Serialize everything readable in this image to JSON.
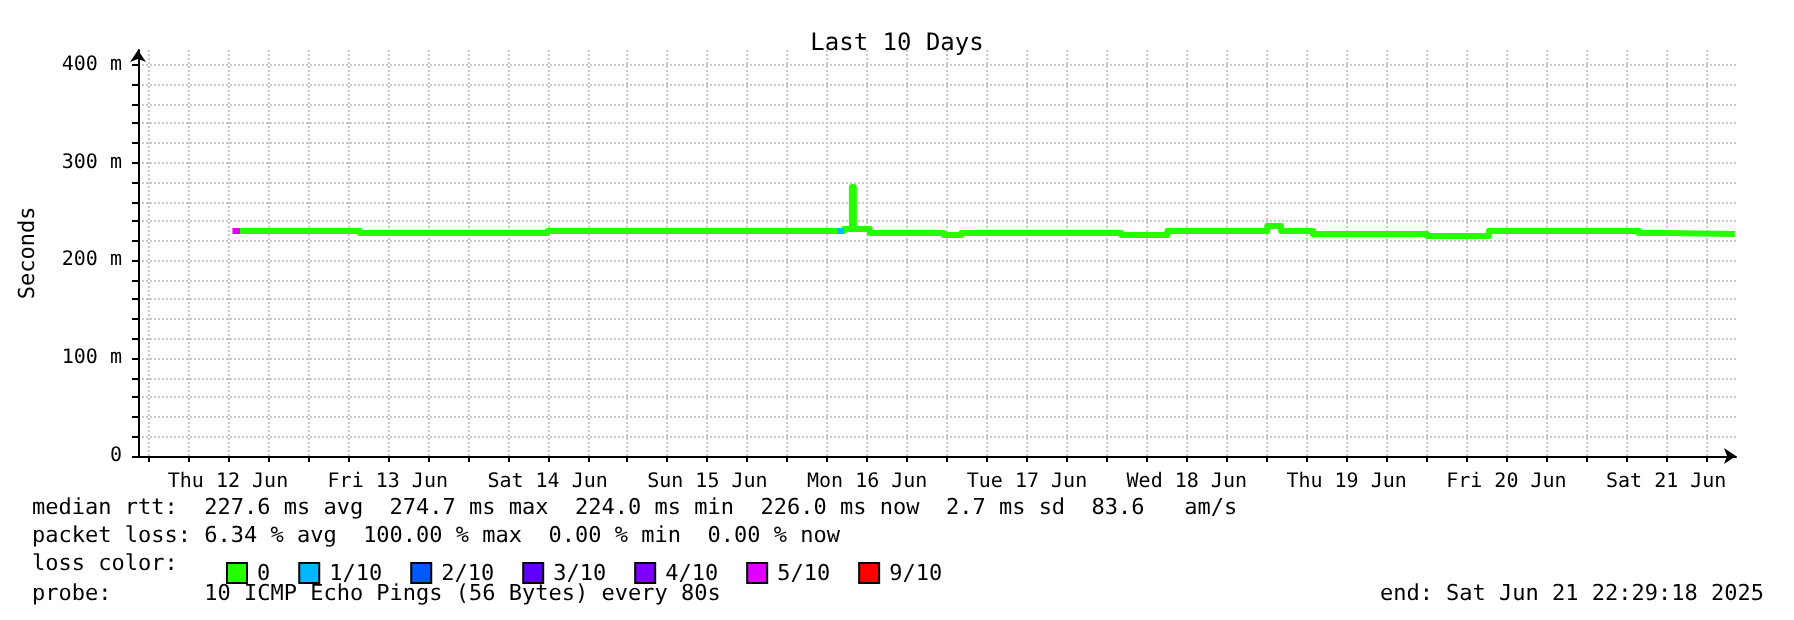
{
  "chart_data": {
    "type": "step",
    "title": "Last 10 Days",
    "ylabel": "Seconds",
    "xlim": [
      "2025-06-11T22:29",
      "2025-06-21T22:29"
    ],
    "xticks": [
      {
        "value": "2025-06-12T00:00",
        "label": null
      },
      {
        "value": "2025-06-12T06:00",
        "label": null
      },
      {
        "value": "2025-06-12T12:00",
        "label": "Thu 12 Jun"
      },
      {
        "value": "2025-06-12T18:00",
        "label": null
      },
      {
        "value": "2025-06-13T00:00",
        "label": null
      },
      {
        "value": "2025-06-13T06:00",
        "label": null
      },
      {
        "value": "2025-06-13T12:00",
        "label": "Fri 13 Jun"
      },
      {
        "value": "2025-06-13T18:00",
        "label": null
      },
      {
        "value": "2025-06-14T00:00",
        "label": null
      },
      {
        "value": "2025-06-14T06:00",
        "label": null
      },
      {
        "value": "2025-06-14T12:00",
        "label": "Sat 14 Jun"
      },
      {
        "value": "2025-06-14T18:00",
        "label": null
      },
      {
        "value": "2025-06-15T00:00",
        "label": null
      },
      {
        "value": "2025-06-15T06:00",
        "label": null
      },
      {
        "value": "2025-06-15T12:00",
        "label": "Sun 15 Jun"
      },
      {
        "value": "2025-06-15T18:00",
        "label": null
      },
      {
        "value": "2025-06-16T00:00",
        "label": null
      },
      {
        "value": "2025-06-16T06:00",
        "label": null
      },
      {
        "value": "2025-06-16T12:00",
        "label": "Mon 16 Jun"
      },
      {
        "value": "2025-06-16T18:00",
        "label": null
      },
      {
        "value": "2025-06-17T00:00",
        "label": null
      },
      {
        "value": "2025-06-17T06:00",
        "label": null
      },
      {
        "value": "2025-06-17T12:00",
        "label": "Tue 17 Jun"
      },
      {
        "value": "2025-06-17T18:00",
        "label": null
      },
      {
        "value": "2025-06-18T00:00",
        "label": null
      },
      {
        "value": "2025-06-18T06:00",
        "label": null
      },
      {
        "value": "2025-06-18T12:00",
        "label": "Wed 18 Jun"
      },
      {
        "value": "2025-06-18T18:00",
        "label": null
      },
      {
        "value": "2025-06-19T00:00",
        "label": null
      },
      {
        "value": "2025-06-19T06:00",
        "label": null
      },
      {
        "value": "2025-06-19T12:00",
        "label": "Thu 19 Jun"
      },
      {
        "value": "2025-06-19T18:00",
        "label": null
      },
      {
        "value": "2025-06-20T00:00",
        "label": null
      },
      {
        "value": "2025-06-20T06:00",
        "label": null
      },
      {
        "value": "2025-06-20T12:00",
        "label": "Fri 20 Jun"
      },
      {
        "value": "2025-06-20T18:00",
        "label": null
      },
      {
        "value": "2025-06-21T00:00",
        "label": null
      },
      {
        "value": "2025-06-21T06:00",
        "label": null
      },
      {
        "value": "2025-06-21T12:00",
        "label": "Sat 21 Jun"
      },
      {
        "value": "2025-06-21T18:00",
        "label": null
      }
    ],
    "ylim": [
      0,
      415
    ],
    "yticks": [
      0,
      {
        "value": 20,
        "label": null
      },
      {
        "value": 40,
        "label": null
      },
      {
        "value": 60,
        "label": null
      },
      {
        "value": 80,
        "label": null
      },
      {
        "value": 100,
        "label": "100 m"
      },
      {
        "value": 120,
        "label": null
      },
      {
        "value": 140,
        "label": null
      },
      {
        "value": 160,
        "label": null
      },
      {
        "value": 180,
        "label": null
      },
      {
        "value": 200,
        "label": "200 m"
      },
      {
        "value": 220,
        "label": null
      },
      {
        "value": 240,
        "label": null
      },
      {
        "value": 260,
        "label": null
      },
      {
        "value": 280,
        "label": null
      },
      {
        "value": 300,
        "label": "300 m"
      },
      {
        "value": 320,
        "label": null
      },
      {
        "value": 340,
        "label": null
      },
      {
        "value": 360,
        "label": null
      },
      {
        "value": 380,
        "label": null
      },
      {
        "value": 400,
        "label": "400 m"
      }
    ],
    "grid": true,
    "marker": "none",
    "line_style": "solid",
    "legend": "bottom left",
    "legend_title": "loss color:",
    "series": [
      {
        "name": "0",
        "color": "#26ff00",
        "x": [
          "2025-06-12T13:48",
          "2025-06-13T07:48",
          "2025-06-14T12:00",
          "2025-06-16T08:30",
          "2025-06-16T09:42",
          "2025-06-16T10:00",
          "2025-06-16T12:23",
          "2025-06-16T23:29",
          "2025-06-17T02:10",
          "2025-06-18T02:10",
          "2025-06-18T09:05",
          "2025-06-19T00:05",
          "2025-06-19T02:10",
          "2025-06-19T06:58",
          "2025-06-20T00:05",
          "2025-06-20T09:22",
          "2025-06-21T07:53",
          "2025-06-21T12:05",
          "2025-06-21T22:19"
        ],
        "values": [
          230,
          228,
          230,
          232,
          275,
          232,
          228,
          226,
          228,
          226,
          230,
          235,
          230,
          227,
          225,
          230,
          228,
          227,
          227
        ]
      },
      {
        "name": "1/10",
        "color": "#00b8ff",
        "x": [
          "2025-06-16T07:30",
          "2025-06-16T08:30"
        ],
        "values": [
          230,
          230
        ]
      },
      {
        "name": "2/10",
        "color": "#0059ff"
      },
      {
        "name": "3/10",
        "color": "#5e00ff"
      },
      {
        "name": "4/10",
        "color": "#7e00ff"
      },
      {
        "name": "5/10",
        "color": "#dd00ff",
        "x": [
          "2025-06-12T12:40",
          "2025-06-12T13:48"
        ],
        "values": [
          230,
          230
        ]
      },
      {
        "name": "9/10",
        "color": "#ff0000"
      }
    ],
    "annotations": [
      "median rtt:  227.6 ms avg  274.7 ms max  224.0 ms min  226.0 ms now  2.7 ms sd  83.6   am/s",
      "packet loss: 6.34 % avg  100.00 % max  0.00 % min  0.00 % now",
      "probe:       10 ICMP Echo Pings (56 Bytes) every 80s",
      "end: Sat Jun 21 22:29:18 2025"
    ]
  }
}
